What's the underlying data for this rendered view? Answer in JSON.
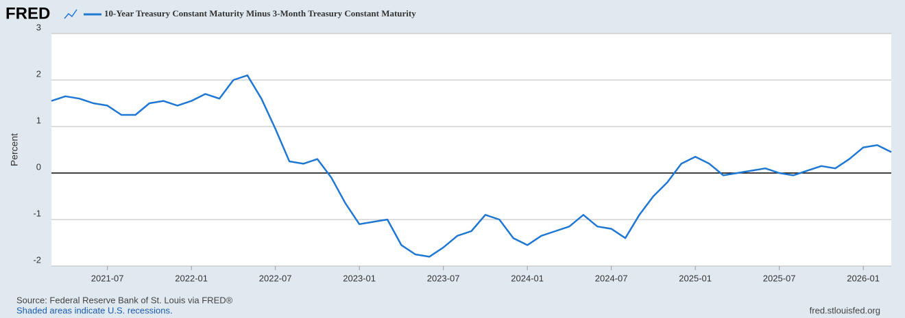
{
  "chart_data": {
    "type": "line",
    "logo": "FRED",
    "title": "10-Year Treasury Constant Maturity Minus 3-Month Treasury Constant Maturity",
    "ylabel": "Percent",
    "source": "Source: Federal Reserve Bank of St. Louis via FRED®",
    "note": "Shaded areas indicate U.S. recessions.",
    "url": "fred.stlouisfed.org",
    "x": [
      "2021-03",
      "2021-04",
      "2021-05",
      "2021-06",
      "2021-07",
      "2021-08",
      "2021-09",
      "2021-10",
      "2021-11",
      "2021-12",
      "2022-01",
      "2022-02",
      "2022-03",
      "2022-04",
      "2022-05",
      "2022-06",
      "2022-07",
      "2022-08",
      "2022-09",
      "2022-10",
      "2022-11",
      "2022-12",
      "2023-01",
      "2023-02",
      "2023-03",
      "2023-04",
      "2023-05",
      "2023-06",
      "2023-07",
      "2023-08",
      "2023-09",
      "2023-10",
      "2023-11",
      "2023-12",
      "2024-01",
      "2024-02",
      "2024-03",
      "2024-04",
      "2024-05",
      "2024-06",
      "2024-07",
      "2024-08",
      "2024-09",
      "2024-10",
      "2024-11",
      "2024-12",
      "2025-01",
      "2025-02",
      "2025-03",
      "2025-04",
      "2025-05",
      "2025-06",
      "2025-07",
      "2025-08",
      "2025-09",
      "2025-10",
      "2025-11",
      "2025-12",
      "2026-01",
      "2026-02",
      "2026-03"
    ],
    "series": [
      {
        "name": "10-Year Treasury Constant Maturity Minus 3-Month Treasury Constant Maturity",
        "color": "#1f77d4",
        "values": [
          1.55,
          1.65,
          1.6,
          1.5,
          1.45,
          1.25,
          1.25,
          1.5,
          1.55,
          1.45,
          1.55,
          1.7,
          1.6,
          2.0,
          2.1,
          1.6,
          0.95,
          0.25,
          0.2,
          0.3,
          -0.1,
          -0.65,
          -1.1,
          -1.05,
          -1.0,
          -1.55,
          -1.75,
          -1.8,
          -1.6,
          -1.35,
          -1.25,
          -0.9,
          -1.0,
          -1.4,
          -1.55,
          -1.35,
          -1.25,
          -1.15,
          -0.9,
          -1.15,
          -1.2,
          -1.4,
          -0.9,
          -0.5,
          -0.2,
          0.2,
          0.35,
          0.2,
          -0.05,
          0.0,
          0.05,
          0.1,
          0.0,
          -0.05,
          0.05,
          0.15,
          0.1,
          0.3,
          0.55,
          0.6,
          0.45
        ]
      }
    ],
    "xlim": [
      "2021-03",
      "2026-03"
    ],
    "xticks": [
      "2021-07",
      "2022-01",
      "2022-07",
      "2023-01",
      "2023-07",
      "2024-01",
      "2024-07",
      "2025-01",
      "2025-07",
      "2026-01"
    ],
    "ylim": [
      -2,
      3
    ],
    "yticks": [
      -2,
      -1,
      0,
      1,
      2,
      3
    ],
    "grid": true
  }
}
